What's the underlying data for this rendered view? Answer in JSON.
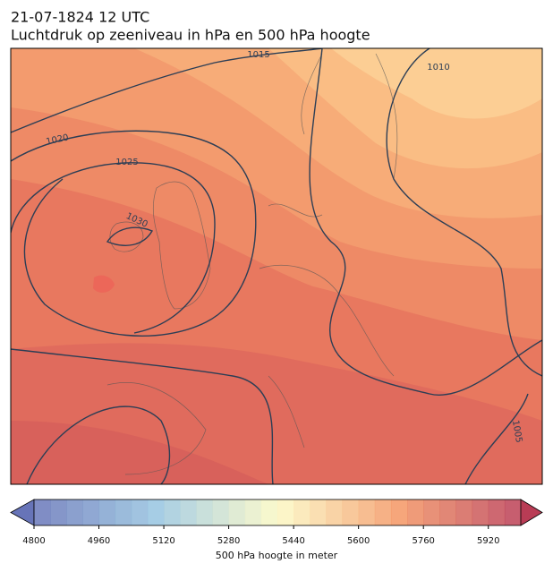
{
  "header": {
    "title": "21-07-1824 12 UTC",
    "subtitle": "Luchtdruk op zeeniveau in hPa en 500 hPa hoogte"
  },
  "map": {
    "isobar_labels": [
      1015,
      1010,
      1020,
      1025,
      1030,
      1005
    ]
  },
  "colorbar": {
    "label": "500 hPa hoogte in meter",
    "range": [
      4800,
      6000
    ],
    "step": 40,
    "ticks": [
      4800,
      4960,
      5120,
      5280,
      5440,
      5600,
      5760,
      5920
    ]
  }
}
